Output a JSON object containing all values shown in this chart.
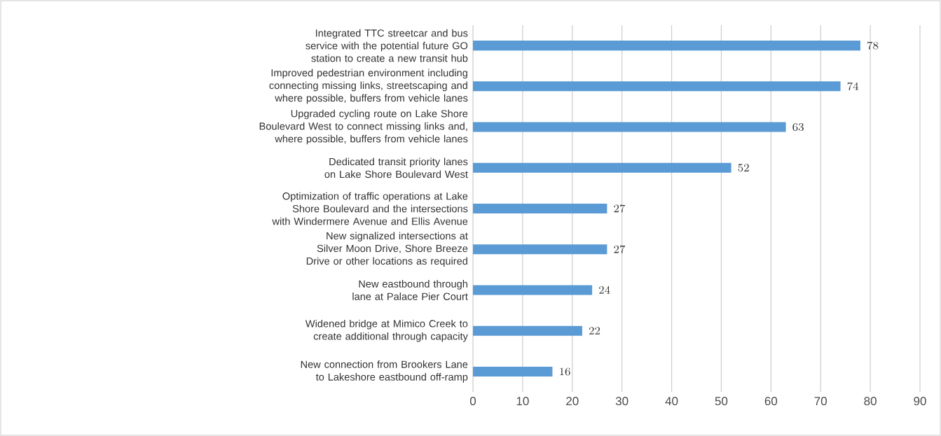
{
  "chart_data": {
    "type": "bar",
    "orientation": "horizontal",
    "categories": [
      "Integrated TTC streetcar and bus service with the potential future GO station to create a new transit hub",
      "Improved pedestrian environment including connecting missing links, streetscaping and where possible, buffers from vehicle lanes",
      "Upgraded cycling route on Lake Shore Boulevard West to connect missing links and, where possible, buffers from vehicle lanes",
      "Dedicated transit priority lanes on Lake Shore Boulevard West",
      "Optimization of traffic operations at Lake Shore Boulevard and the intersections with Windermere Avenue and Ellis Avenue",
      "New signalized intersections at Silver Moon Drive, Shore Breeze Drive or other locations as required",
      "New eastbound through lane at Palace Pier Court",
      "Widened bridge at Mimico Creek to create additional through capacity",
      "New connection from Brookers Lane to Lakeshore eastbound off-ramp"
    ],
    "values": [
      78,
      74,
      63,
      52,
      27,
      27,
      24,
      22,
      16
    ],
    "color": "#5b9bd5",
    "xlim": [
      0,
      90
    ],
    "xticks": [
      0,
      10,
      20,
      30,
      40,
      50,
      60,
      70,
      80,
      90
    ],
    "grid": "x",
    "data_labels": true
  }
}
